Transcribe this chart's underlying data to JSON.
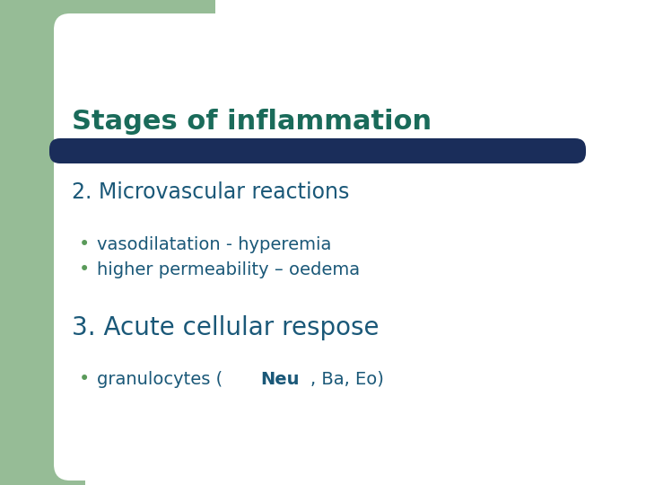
{
  "background_color": "#ffffff",
  "green_bg_color": "#96bc96",
  "white_content_color": "#ffffff",
  "title": "Stages of inflammation",
  "title_color": "#1a6b5a",
  "title_fontsize": 22,
  "divider_color": "#1a2d5a",
  "section2_heading": "2. Microvascular reactions",
  "section2_color": "#1a5878",
  "section2_fontsize": 17,
  "bullet_color": "#5a9a5a",
  "bullet1": "vasodilatation - hyperemia",
  "bullet2": "higher permeability – oedema",
  "bullet_fontsize": 14,
  "bullet_text_color": "#1a5878",
  "section3_heading": "3. Acute cellular respose",
  "section3_color": "#1a5878",
  "section3_fontsize": 20,
  "bullet3_plain": "granulocytes (",
  "bullet3_bold": "Neu",
  "bullet3_rest": ", Ba, Eo)",
  "bullet3_fontsize": 14
}
